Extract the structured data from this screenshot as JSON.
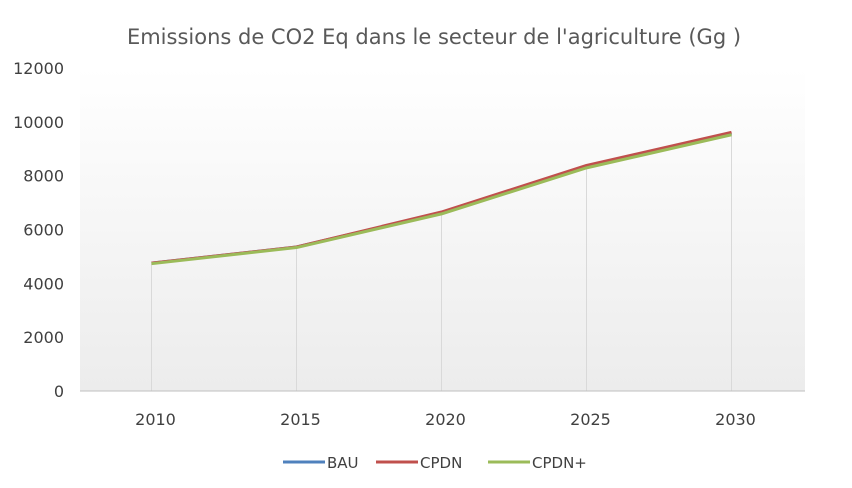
{
  "chart_data": {
    "type": "line",
    "title": "Emissions de CO2 Eq dans le secteur de l'agriculture (Gg )",
    "xlabel": "",
    "ylabel": "",
    "categories": [
      "2010",
      "2015",
      "2020",
      "2025",
      "2030"
    ],
    "ylim": [
      0,
      12000
    ],
    "yticks": [
      "0",
      "2000",
      "4000",
      "6000",
      "8000",
      "10000",
      "12000"
    ],
    "series": [
      {
        "name": "BAU",
        "color": "#4f81bd",
        "values": [
          4750,
          5350,
          6620,
          8330,
          9570
        ]
      },
      {
        "name": "CPDN",
        "color": "#c0504d",
        "values": [
          4750,
          5350,
          6650,
          8380,
          9610
        ]
      },
      {
        "name": "CPDN+",
        "color": "#9bbb59",
        "values": [
          4730,
          5330,
          6580,
          8290,
          9520
        ]
      }
    ],
    "grid": "vertical drop lines",
    "legend_position": "bottom",
    "plot_background": "#f2f2f2 gradient"
  }
}
